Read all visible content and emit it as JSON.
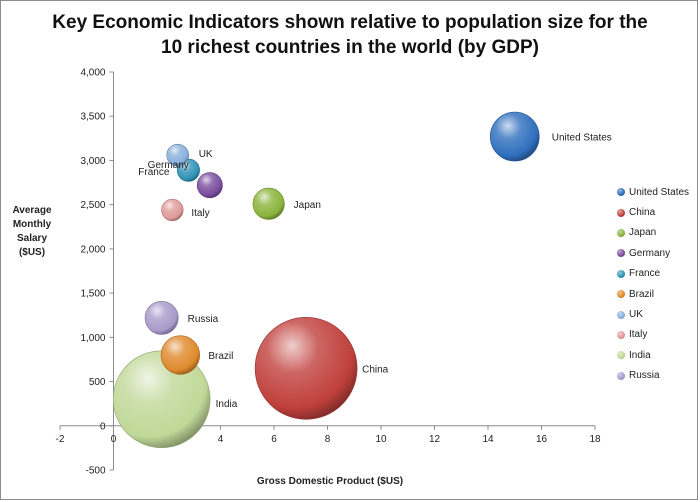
{
  "chart_data": {
    "type": "scatter",
    "title": "Key Economic Indicators shown relative to population size for the\n10 richest countries in the world (by GDP)",
    "xlabel": "Gross Domestic Product ($US)",
    "ylabel": "Average\nMonthly\nSalary\n($US)",
    "xlim": [
      -2,
      18
    ],
    "ylim": [
      -500,
      4000
    ],
    "x_ticks": [
      "-2",
      "0",
      "2",
      "4",
      "6",
      "8",
      "10",
      "12",
      "14",
      "16",
      "18"
    ],
    "y_ticks": [
      "4,000",
      "3,500",
      "3,000",
      "2,500",
      "2,000",
      "1,500",
      "1,000",
      "500",
      "0",
      "-500"
    ],
    "legend_position": "right",
    "grid": false,
    "series": [
      {
        "name": "United States",
        "label": "United States",
        "x": 15.0,
        "y": 3270,
        "population": 309,
        "color": "#2f6fbd"
      },
      {
        "name": "China",
        "label": "China",
        "x": 7.2,
        "y": 650,
        "population": 1340,
        "color": "#c0403c"
      },
      {
        "name": "Japan",
        "label": "Japan",
        "x": 5.8,
        "y": 2510,
        "population": 127,
        "color": "#8bb43c"
      },
      {
        "name": "Germany",
        "label": "Germany",
        "x": 3.6,
        "y": 2720,
        "population": 82,
        "color": "#7a4d9e"
      },
      {
        "name": "France",
        "label": "France",
        "x": 2.8,
        "y": 2890,
        "population": 65,
        "color": "#2f93b5"
      },
      {
        "name": "Brazil",
        "label": "Brazil",
        "x": 2.5,
        "y": 800,
        "population": 193,
        "color": "#e08a2c"
      },
      {
        "name": "UK",
        "label": "UK",
        "x": 2.4,
        "y": 3060,
        "population": 62,
        "color": "#8ab0dc"
      },
      {
        "name": "Italy",
        "label": "Italy",
        "x": 2.2,
        "y": 2440,
        "population": 60,
        "color": "#df9a98"
      },
      {
        "name": "India",
        "label": "India",
        "x": 1.8,
        "y": 300,
        "population": 1210,
        "color": "#c0d898"
      },
      {
        "name": "Russia",
        "label": "Russia",
        "x": 1.8,
        "y": 1220,
        "population": 142,
        "color": "#a99acb"
      }
    ]
  }
}
